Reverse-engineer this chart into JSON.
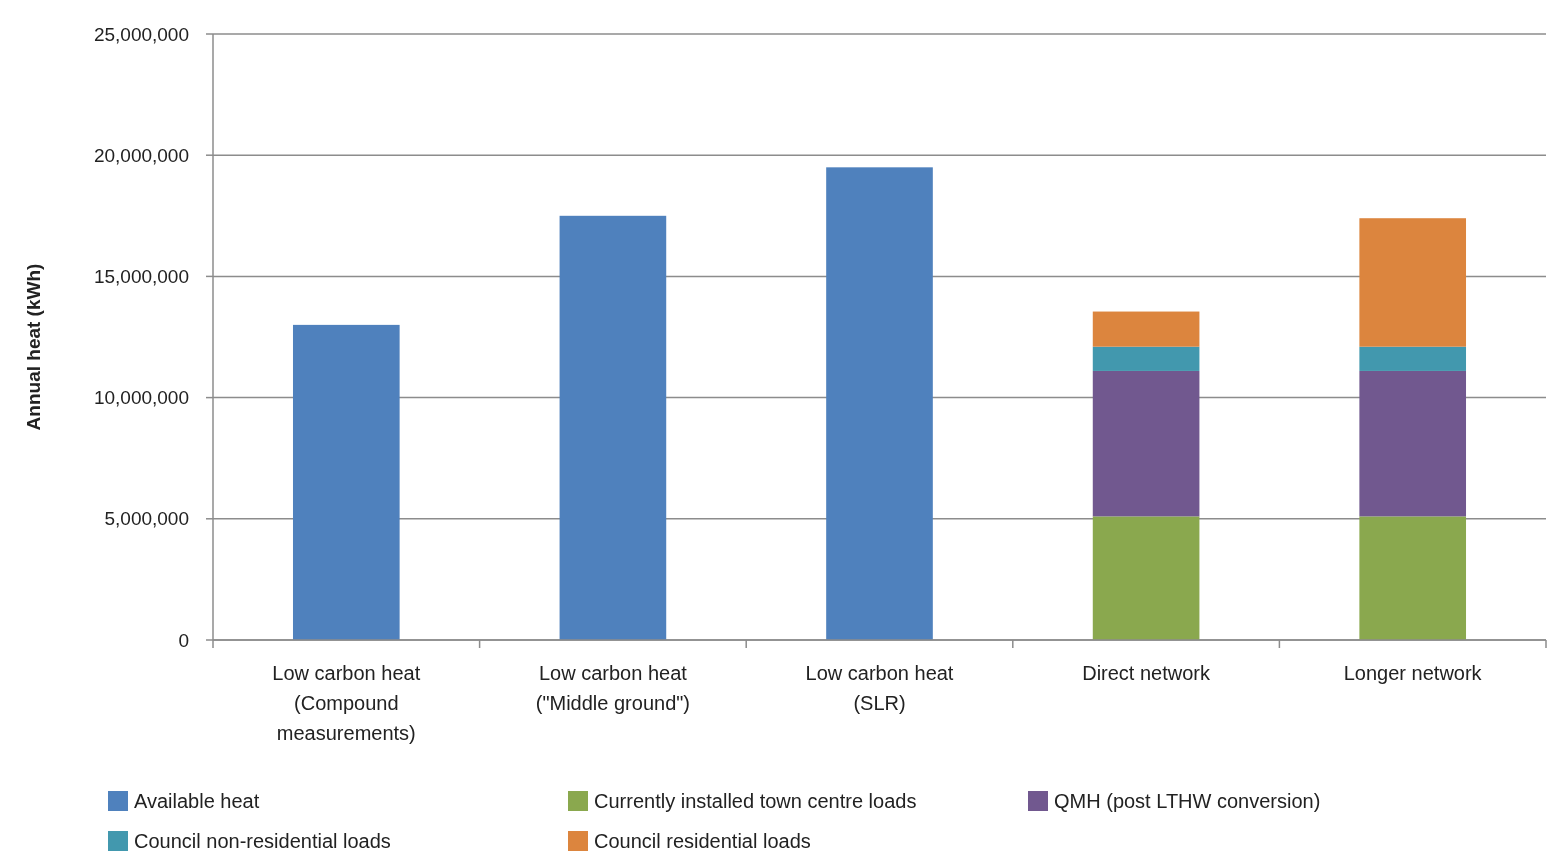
{
  "chart_data": {
    "type": "bar",
    "stacked": true,
    "ylabel": "Annual heat (kWh)",
    "categories": [
      "Low carbon heat (Compound measurements)",
      "Low carbon heat (\"Middle ground\")",
      "Low carbon heat (SLR)",
      "Direct network",
      "Longer network"
    ],
    "series": [
      {
        "name": "Available heat",
        "color": "#4f81bd",
        "values": [
          13000000,
          17500000,
          19500000,
          null,
          null
        ]
      },
      {
        "name": "Currently installed  town  centre loads",
        "color": "#8aa84e",
        "values": [
          null,
          null,
          null,
          5100000,
          5100000
        ]
      },
      {
        "name": "QMH (post LTHW  conversion)",
        "color": "#71588f",
        "values": [
          null,
          null,
          null,
          6000000,
          6000000
        ]
      },
      {
        "name": "Council non-residential loads",
        "color": "#4298ae",
        "values": [
          null,
          null,
          null,
          1000000,
          1000000
        ]
      },
      {
        "name": "Council residential loads",
        "color": "#dc853e",
        "values": [
          null,
          null,
          null,
          1450000,
          5300000
        ]
      }
    ],
    "ylim": [
      0,
      25000000
    ],
    "yticks": [
      0,
      {
        "value": 5000000,
        "label": "5,000,000"
      },
      {
        "value": 10000000,
        "label": "10,000,000"
      },
      {
        "value": 15000000,
        "label": "15,000,000"
      },
      {
        "value": 20000000,
        "label": "20,000,000"
      },
      {
        "value": 25000000,
        "label": "25,000,000"
      }
    ],
    "grid": "y",
    "legend": "bottom"
  }
}
